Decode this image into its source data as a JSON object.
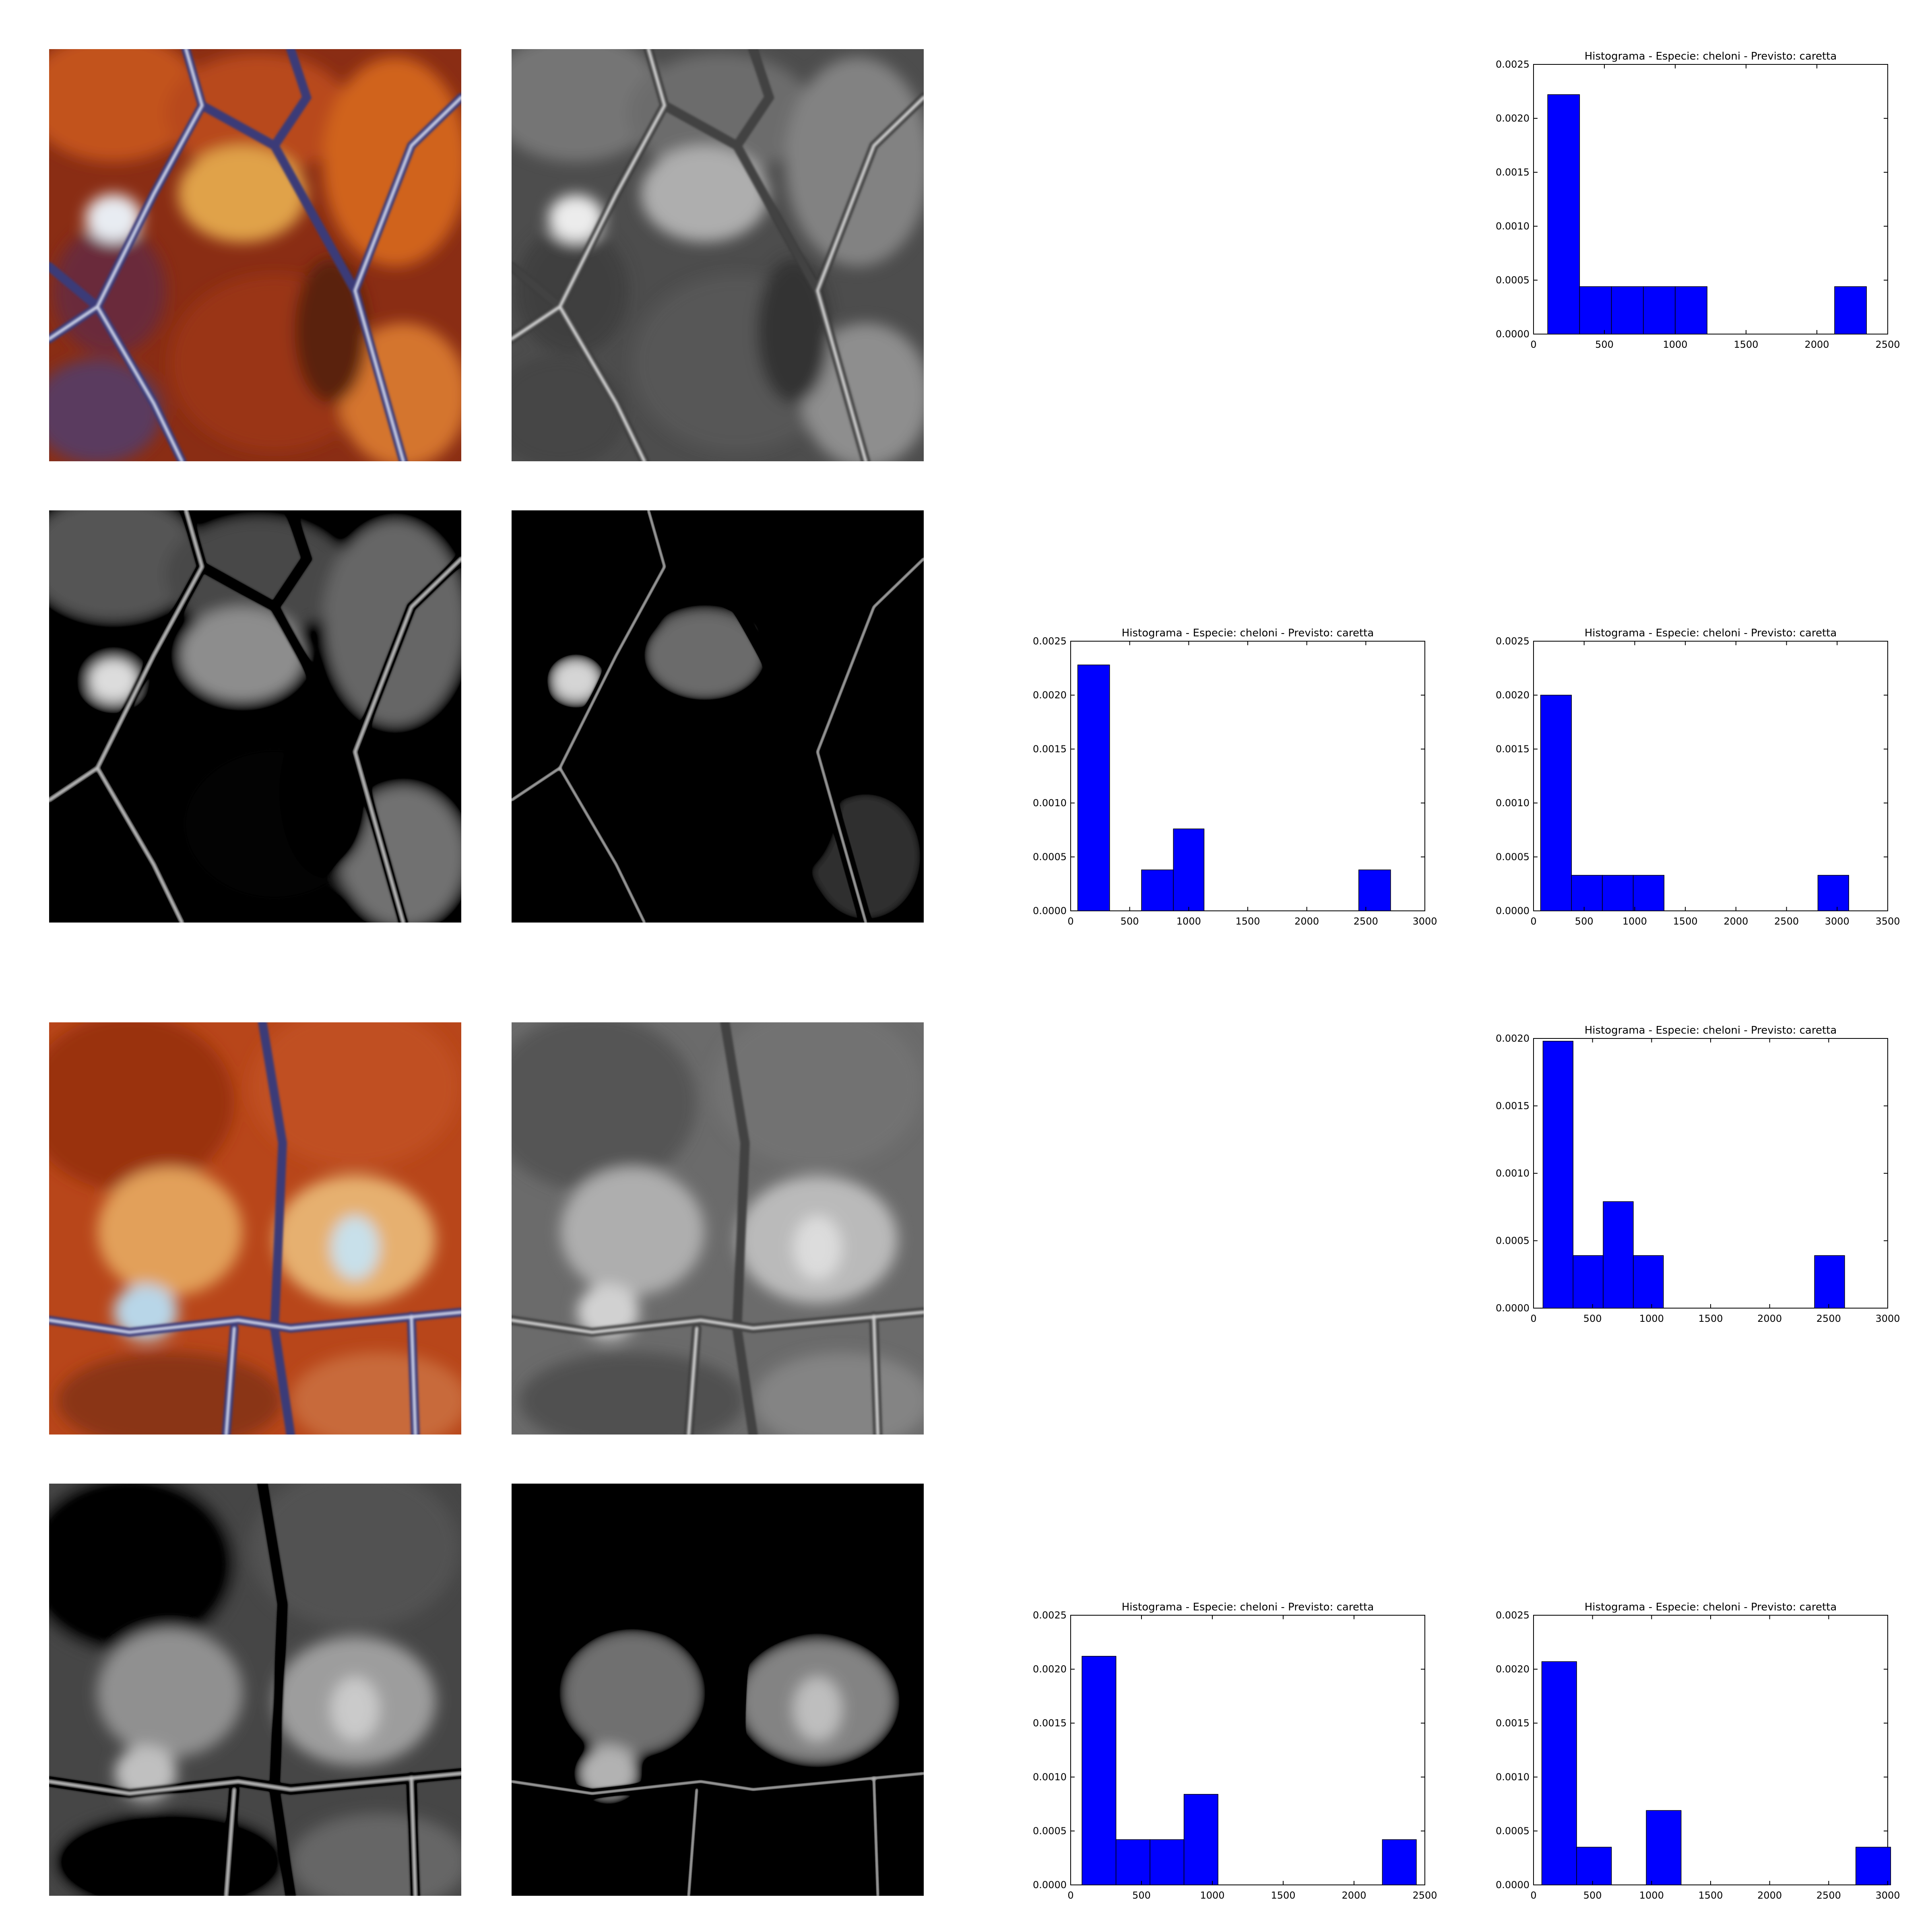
{
  "photos": {
    "p1": {
      "icon": "turtle-scute-color-image"
    },
    "p2": {
      "icon": "turtle-scute-grayscale-image"
    },
    "p3": {
      "icon": "turtle-scute-grayscale-dark-image"
    },
    "p4": {
      "icon": "turtle-scute-grayscale-darker-image"
    },
    "p5": {
      "icon": "turtle-scute-color-image"
    },
    "p6": {
      "icon": "turtle-scute-grayscale-image"
    },
    "p7": {
      "icon": "turtle-scute-grayscale-dark-image"
    },
    "p8": {
      "icon": "turtle-scute-grayscale-darker-image"
    }
  },
  "chart_data": [
    {
      "id": "c1",
      "type": "bar",
      "title": "Histograma - Especie: cheloni - Previsto: caretta",
      "xlabel": "",
      "ylabel": "",
      "xlim": [
        0,
        2500
      ],
      "ylim": [
        0,
        0.0025
      ],
      "xticks": [
        "0",
        "500",
        "1000",
        "1500",
        "2000",
        "2500"
      ],
      "yticks": [
        "0.0000",
        "0.0005",
        "0.0010",
        "0.0015",
        "0.0020",
        "0.0025"
      ],
      "bins": [
        [
          100,
          325,
          0.00222
        ],
        [
          325,
          550,
          0.00044
        ],
        [
          550,
          775,
          0.00044
        ],
        [
          775,
          1000,
          0.00044
        ],
        [
          1000,
          1225,
          0.00044
        ],
        [
          2125,
          2350,
          0.00044
        ]
      ],
      "bar_color": "#0000ff",
      "grid": false,
      "legend": "none"
    },
    {
      "id": "c2",
      "type": "bar",
      "title": "Histograma - Especie: cheloni - Previsto: caretta",
      "xlabel": "",
      "ylabel": "",
      "xlim": [
        0,
        3000
      ],
      "ylim": [
        0,
        0.0025
      ],
      "xticks": [
        "0",
        "500",
        "1000",
        "1500",
        "2000",
        "2500",
        "3000"
      ],
      "yticks": [
        "0.0000",
        "0.0005",
        "0.0010",
        "0.0015",
        "0.0020",
        "0.0025"
      ],
      "bins": [
        [
          60,
          330,
          0.00228
        ],
        [
          600,
          870,
          0.00038
        ],
        [
          870,
          1130,
          0.00076
        ],
        [
          2440,
          2710,
          0.00038
        ]
      ],
      "bar_color": "#0000ff",
      "grid": false,
      "legend": "none"
    },
    {
      "id": "c3",
      "type": "bar",
      "title": "Histograma - Especie: cheloni - Previsto: caretta",
      "xlabel": "",
      "ylabel": "",
      "xlim": [
        0,
        3500
      ],
      "ylim": [
        0,
        0.0025
      ],
      "xticks": [
        "0",
        "500",
        "1000",
        "1500",
        "2000",
        "2500",
        "3000",
        "3500"
      ],
      "yticks": [
        "0.0000",
        "0.0005",
        "0.0010",
        "0.0015",
        "0.0020",
        "0.0025"
      ],
      "bins": [
        [
          70,
          375,
          0.002
        ],
        [
          375,
          680,
          0.00033
        ],
        [
          680,
          985,
          0.00033
        ],
        [
          985,
          1290,
          0.00033
        ],
        [
          2810,
          3115,
          0.00033
        ]
      ],
      "bar_color": "#0000ff",
      "grid": false,
      "legend": "none"
    },
    {
      "id": "c4",
      "type": "bar",
      "title": "Histograma - Especie: cheloni - Previsto: caretta",
      "xlabel": "",
      "ylabel": "",
      "xlim": [
        0,
        3000
      ],
      "ylim": [
        0,
        0.002
      ],
      "xticks": [
        "0",
        "500",
        "1000",
        "1500",
        "2000",
        "2500",
        "3000"
      ],
      "yticks": [
        "0.0000",
        "0.0005",
        "0.0010",
        "0.0015",
        "0.0020"
      ],
      "bins": [
        [
          80,
          335,
          0.00198
        ],
        [
          335,
          590,
          0.00039
        ],
        [
          590,
          845,
          0.00079
        ],
        [
          845,
          1100,
          0.00039
        ],
        [
          2380,
          2635,
          0.00039
        ]
      ],
      "bar_color": "#0000ff",
      "grid": false,
      "legend": "none"
    },
    {
      "id": "c5",
      "type": "bar",
      "title": "Histograma - Especie: cheloni - Previsto: caretta",
      "xlabel": "",
      "ylabel": "",
      "xlim": [
        0,
        2500
      ],
      "ylim": [
        0,
        0.0025
      ],
      "xticks": [
        "0",
        "500",
        "1000",
        "1500",
        "2000",
        "2500"
      ],
      "yticks": [
        "0.0000",
        "0.0005",
        "0.0010",
        "0.0015",
        "0.0020",
        "0.0025"
      ],
      "bins": [
        [
          80,
          320,
          0.00212
        ],
        [
          320,
          560,
          0.00042
        ],
        [
          560,
          800,
          0.00042
        ],
        [
          800,
          1040,
          0.00084
        ],
        [
          2200,
          2440,
          0.00042
        ]
      ],
      "bar_color": "#0000ff",
      "grid": false,
      "legend": "none"
    },
    {
      "id": "c6",
      "type": "bar",
      "title": "Histograma - Especie: cheloni - Previsto: caretta",
      "xlabel": "",
      "ylabel": "",
      "xlim": [
        0,
        3000
      ],
      "ylim": [
        0,
        0.0025
      ],
      "xticks": [
        "0",
        "500",
        "1000",
        "1500",
        "2000",
        "2500",
        "3000"
      ],
      "yticks": [
        "0.0000",
        "0.0005",
        "0.0010",
        "0.0015",
        "0.0020",
        "0.0025"
      ],
      "bins": [
        [
          70,
          365,
          0.00207
        ],
        [
          365,
          660,
          0.00035
        ],
        [
          955,
          1250,
          0.00069
        ],
        [
          2730,
          3025,
          0.00035
        ]
      ],
      "bar_color": "#0000ff",
      "grid": false,
      "legend": "none"
    }
  ]
}
